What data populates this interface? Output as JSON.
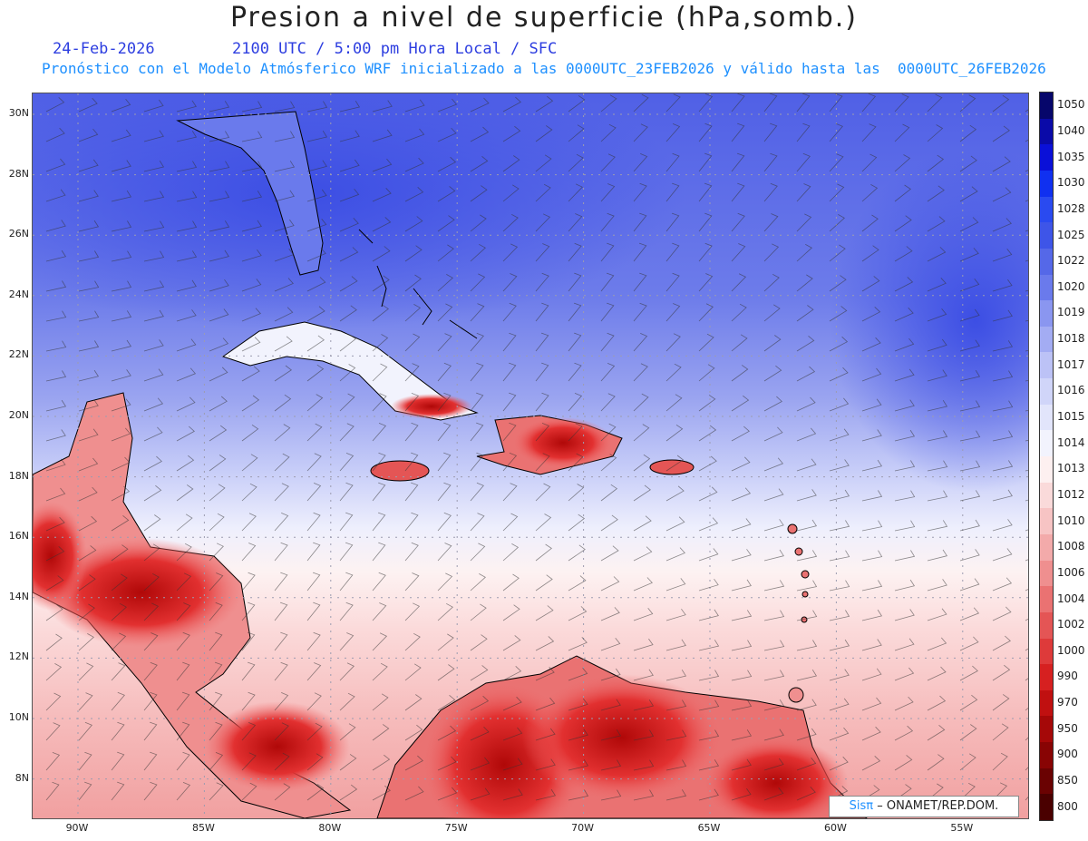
{
  "header": {
    "title": "Presion a nivel de superficie (hPa,somb.)",
    "date": "24-Feb-2026",
    "time": "2100 UTC / 5:00 pm Hora Local / SFC",
    "info": "Pronóstico con el Modelo Atmósferico WRF inicializado a las 0000UTC_23FEB2026 y válido hasta las  0000UTC_26FEB2026"
  },
  "colors": {
    "date": "#2d3ee0",
    "time": "#2d3ee0",
    "info": "#1e90ff",
    "title": "#222222"
  },
  "map": {
    "lat_labels": [
      "30N",
      "28N",
      "26N",
      "24N",
      "22N",
      "20N",
      "18N",
      "16N",
      "14N",
      "12N",
      "10N",
      "8N"
    ],
    "lon_labels": [
      "90W",
      "85W",
      "80W",
      "75W",
      "70W",
      "65W",
      "60W",
      "55W"
    ]
  },
  "colorbar": {
    "levels": [
      "1050",
      "1040",
      "1035",
      "1030",
      "1028",
      "1025",
      "1022",
      "1020",
      "1019",
      "1018",
      "1017",
      "1016",
      "1015",
      "1014",
      "1013",
      "1012",
      "1010",
      "1008",
      "1006",
      "1004",
      "1002",
      "1000",
      "990",
      "970",
      "950",
      "900",
      "850",
      "800"
    ],
    "colors": [
      "#06066b",
      "#0a0aa8",
      "#0a10d8",
      "#1030f0",
      "#2a4af0",
      "#3e55e8",
      "#5568e8",
      "#6a7aec",
      "#8a96f0",
      "#a3acf3",
      "#bcc2f6",
      "#d0d5f9",
      "#e2e5fb",
      "#f2f3fd",
      "#fdf0f0",
      "#fadada",
      "#f7c4c4",
      "#f3aaaa",
      "#ef8f8f",
      "#ea7272",
      "#e45555",
      "#de3a3a",
      "#d62020",
      "#c01010",
      "#a50808",
      "#880404",
      "#6a0202",
      "#4a0000"
    ]
  },
  "credit": {
    "brand": "Sisπ",
    "text": "– ONAMET/REP.DOM."
  }
}
